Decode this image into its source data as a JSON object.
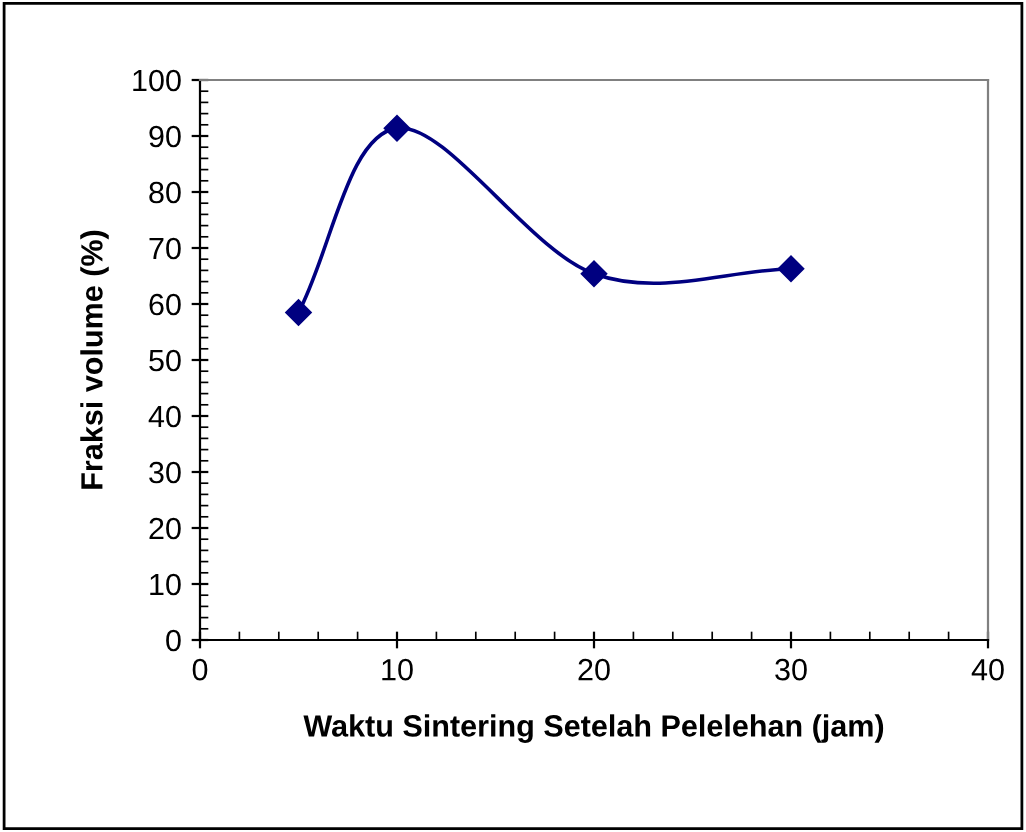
{
  "chart_data": {
    "type": "line",
    "xlabel": "Waktu Sintering Setelah Pelelehan (jam)",
    "ylabel": "Fraksi volume (%)",
    "x": [
      5,
      10,
      20,
      30
    ],
    "series": [
      {
        "color": "#000080",
        "values": [
          58.5,
          91.4,
          65.4,
          66.3
        ]
      }
    ],
    "xlim": [
      0,
      40
    ],
    "xticks": [
      0,
      10,
      20,
      30,
      40
    ],
    "ylim": [
      0,
      100
    ],
    "yticks": [
      0,
      10,
      20,
      30,
      40,
      50,
      60,
      70,
      80,
      90,
      100
    ],
    "marker": "diamond",
    "line_style": "solid",
    "grid": false,
    "legend": false
  }
}
